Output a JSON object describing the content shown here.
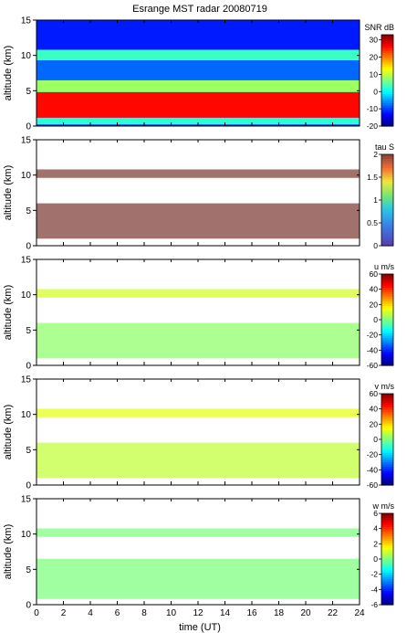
{
  "title": "Esrange MST radar 20080719",
  "xlabel": "time (UT)",
  "chart_data": [
    {
      "type": "heatmap",
      "title": "Esrange MST radar 20080719",
      "quantity": "SNR",
      "colorbar_label": "SNR dB",
      "colorbar_ticks": [
        30,
        20,
        10,
        0,
        -10,
        -20
      ],
      "clim": [
        -20,
        33
      ],
      "ylabel": "altitude (km)",
      "y_ticks": [
        0,
        5,
        10,
        15
      ],
      "ylim": [
        0,
        15
      ],
      "x_ticks": [
        0,
        2,
        4,
        6,
        8,
        10,
        12,
        14,
        16,
        18,
        20,
        22,
        24
      ],
      "xlim": [
        0,
        24
      ],
      "layers": [
        {
          "alt_from": 0.2,
          "alt_to": 1.2,
          "value": 2
        },
        {
          "alt_from": 1.2,
          "alt_to": 4.8,
          "value": 26
        },
        {
          "alt_from": 4.8,
          "alt_to": 6.5,
          "value": 8
        },
        {
          "alt_from": 6.5,
          "alt_to": 9.3,
          "value": -8
        },
        {
          "alt_from": 9.3,
          "alt_to": 10.8,
          "value": 3
        },
        {
          "alt_from": 10.8,
          "alt_to": 15,
          "value": -12
        }
      ]
    },
    {
      "type": "heatmap",
      "quantity": "tau",
      "colorbar_label": "tau S",
      "colorbar_ticks": [
        2,
        1.5,
        1,
        0.5,
        0
      ],
      "clim": [
        0,
        2
      ],
      "ylabel": "altitude (km)",
      "y_ticks": [
        0,
        5,
        10,
        15
      ],
      "ylim": [
        0,
        15
      ],
      "x_ticks": [
        0,
        2,
        4,
        6,
        8,
        10,
        12,
        14,
        16,
        18,
        20,
        22,
        24
      ],
      "xlim": [
        0,
        24
      ],
      "layers": [
        {
          "alt_from": 1.0,
          "alt_to": 6.0,
          "value": 2
        },
        {
          "alt_from": 9.6,
          "alt_to": 10.8,
          "value": 2
        }
      ]
    },
    {
      "type": "heatmap",
      "quantity": "u",
      "colorbar_label": "u m/s",
      "colorbar_ticks": [
        60,
        40,
        20,
        0,
        -20,
        -40,
        -60
      ],
      "clim": [
        -60,
        60
      ],
      "ylabel": "altitude (km)",
      "y_ticks": [
        0,
        5,
        10,
        15
      ],
      "ylim": [
        0,
        15
      ],
      "x_ticks": [
        0,
        2,
        4,
        6,
        8,
        10,
        12,
        14,
        16,
        18,
        20,
        22,
        24
      ],
      "xlim": [
        0,
        24
      ],
      "layers": [
        {
          "alt_from": 1.0,
          "alt_to": 6.0,
          "value": 2
        },
        {
          "alt_from": 9.6,
          "alt_to": 10.8,
          "value": 10
        }
      ]
    },
    {
      "type": "heatmap",
      "quantity": "v",
      "colorbar_label": "v m/s",
      "colorbar_ticks": [
        60,
        40,
        20,
        0,
        -20,
        -40,
        -60
      ],
      "clim": [
        -60,
        60
      ],
      "ylabel": "altitude (km)",
      "y_ticks": [
        0,
        5,
        10,
        15
      ],
      "ylim": [
        0,
        15
      ],
      "x_ticks": [
        0,
        2,
        4,
        6,
        8,
        10,
        12,
        14,
        16,
        18,
        20,
        22,
        24
      ],
      "xlim": [
        0,
        24
      ],
      "layers": [
        {
          "alt_from": 1.0,
          "alt_to": 6.0,
          "value": 8
        },
        {
          "alt_from": 9.6,
          "alt_to": 10.8,
          "value": 12
        }
      ]
    },
    {
      "type": "heatmap",
      "quantity": "w",
      "colorbar_label": "w m/s",
      "colorbar_ticks": [
        6,
        4,
        2,
        0,
        -2,
        -4,
        -6
      ],
      "clim": [
        -6,
        6
      ],
      "ylabel": "altitude (km)",
      "y_ticks": [
        0,
        5,
        10,
        15
      ],
      "ylim": [
        0,
        15
      ],
      "x_ticks": [
        0,
        2,
        4,
        6,
        8,
        10,
        12,
        14,
        16,
        18,
        20,
        22,
        24
      ],
      "xlim": [
        0,
        24
      ],
      "layers": [
        {
          "alt_from": 0.8,
          "alt_to": 6.5,
          "value": 0
        },
        {
          "alt_from": 9.6,
          "alt_to": 10.8,
          "value": 0
        }
      ]
    }
  ]
}
